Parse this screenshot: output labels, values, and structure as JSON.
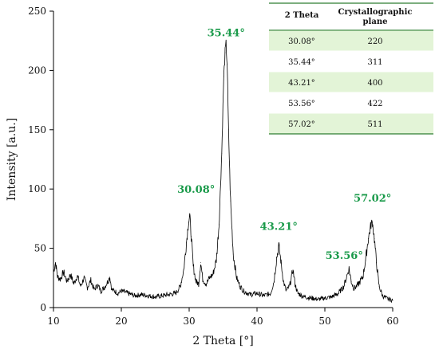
{
  "colors": {
    "peak_label": "#1a9a4a",
    "row_highlight": "#e3f4d7",
    "line": "#000000",
    "table_rule": "#2e7d32"
  },
  "chart_data": {
    "type": "line",
    "xlabel": "2 Theta [°]",
    "ylabel": "Intensity [a.u.]",
    "xlim": [
      10,
      60
    ],
    "ylim": [
      0,
      250
    ],
    "x_ticks": [
      "10",
      "20",
      "30",
      "40",
      "50",
      "60"
    ],
    "y_ticks": [
      "0",
      "50",
      "100",
      "150",
      "200",
      "250"
    ],
    "grid": false,
    "series": [
      {
        "x": [
          10,
          10.3,
          10.6,
          11,
          11.5,
          12,
          12.5,
          13,
          13.5,
          14,
          14.5,
          15,
          15.5,
          16,
          16.5,
          17,
          17.5,
          18,
          18.3,
          18.6,
          19,
          19.5,
          20,
          21,
          22,
          23,
          24,
          25,
          26,
          27,
          28,
          28.7,
          29.2,
          29.6,
          29.9,
          30.08,
          30.3,
          30.6,
          31,
          31.4,
          31.7,
          32,
          32.5,
          33,
          33.5,
          34,
          34.4,
          34.8,
          35.1,
          35.3,
          35.44,
          35.6,
          35.8,
          36.1,
          36.5,
          37,
          37.5,
          38,
          39,
          40,
          41,
          42,
          42.5,
          42.9,
          43.21,
          43.5,
          43.9,
          44.3,
          44.8,
          45.3,
          45.6,
          46,
          47,
          48,
          49,
          50,
          51,
          52,
          52.8,
          53.3,
          53.56,
          53.9,
          54.3,
          55,
          55.6,
          56,
          56.4,
          56.8,
          57.02,
          57.3,
          57.6,
          58,
          58.5,
          59,
          59.5,
          60
        ],
        "y": [
          30,
          38,
          26,
          24,
          30,
          22,
          28,
          20,
          27,
          18,
          25,
          17,
          23,
          15,
          19,
          14,
          17,
          22,
          26,
          15,
          14,
          12,
          14,
          12,
          10,
          11,
          10,
          9,
          10,
          11,
          12,
          18,
          32,
          55,
          72,
          78,
          60,
          35,
          22,
          20,
          38,
          24,
          20,
          25,
          28,
          40,
          70,
          130,
          195,
          215,
          222,
          205,
          150,
          90,
          45,
          25,
          18,
          14,
          11,
          12,
          10,
          12,
          22,
          42,
          52,
          40,
          22,
          14,
          18,
          32,
          20,
          12,
          9,
          8,
          7,
          8,
          9,
          12,
          18,
          28,
          33,
          22,
          16,
          20,
          26,
          40,
          58,
          70,
          72,
          58,
          38,
          18,
          10,
          8,
          7,
          6
        ]
      }
    ],
    "annotations": [
      {
        "label": "35.44°",
        "x": 35.44,
        "y": 222
      },
      {
        "label": "30.08°",
        "x": 30.08,
        "y": 78
      },
      {
        "label": "43.21°",
        "x": 43.21,
        "y": 52
      },
      {
        "label": "53.56°",
        "x": 53.56,
        "y": 33
      },
      {
        "label": "57.02°",
        "x": 57.02,
        "y": 72
      }
    ]
  },
  "table": {
    "headers": [
      "2 Theta",
      "Crystallographic plane"
    ],
    "rows": [
      [
        "30.08°",
        "220"
      ],
      [
        "35.44°",
        "311"
      ],
      [
        "43.21°",
        "400"
      ],
      [
        "53.56°",
        "422"
      ],
      [
        "57.02°",
        "511"
      ]
    ]
  }
}
